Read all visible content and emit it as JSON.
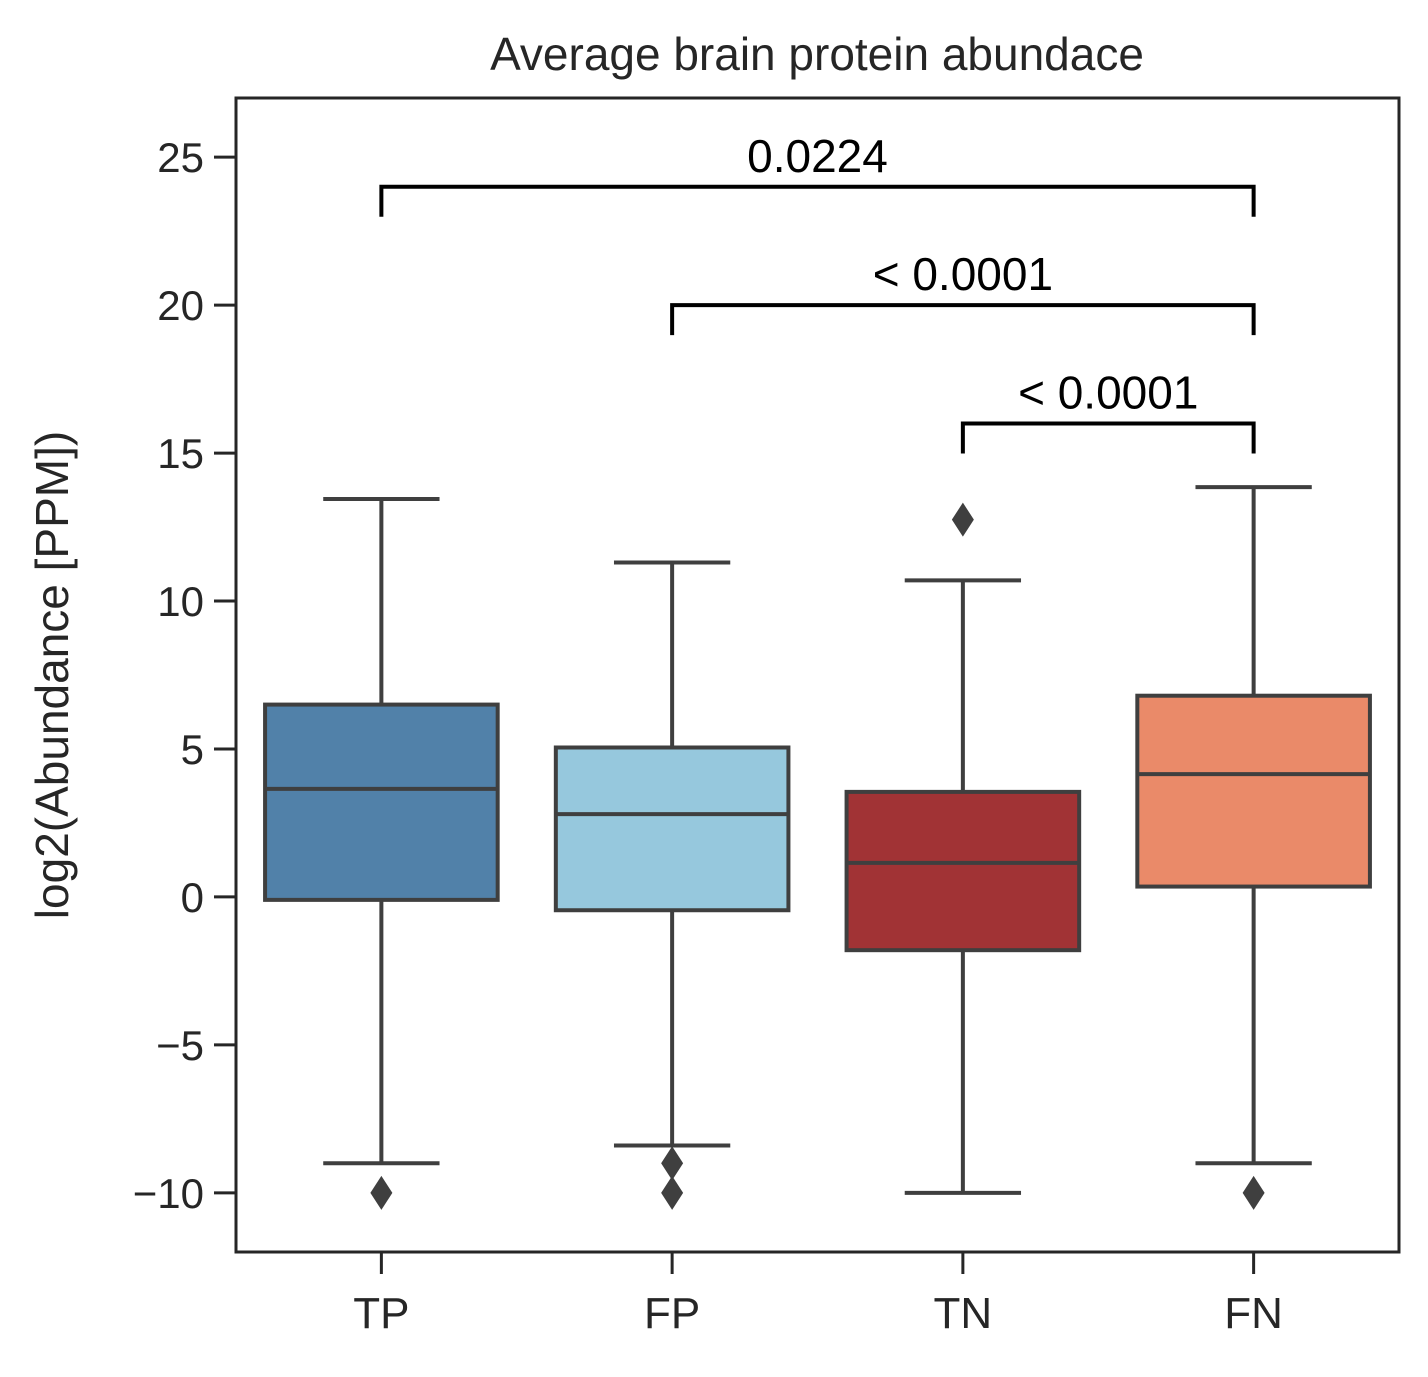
{
  "chart_data": {
    "type": "box",
    "title": "Average brain protein abundace",
    "xlabel": "",
    "ylabel": "log2(Abundance [PPM])",
    "ylim": [
      -12,
      27
    ],
    "yticks": [
      -10,
      -5,
      0,
      5,
      10,
      15,
      20,
      25
    ],
    "ytick_labels": [
      "−10",
      "−5",
      "0",
      "5",
      "10",
      "15",
      "20",
      "25"
    ],
    "categories": [
      "TP",
      "FP",
      "TN",
      "FN"
    ],
    "boxes": [
      {
        "category": "TP",
        "color": "#5181a9",
        "whisker_low": -9.0,
        "q1": -0.1,
        "median": 3.65,
        "q3": 6.5,
        "whisker_high": 13.45,
        "outliers": [
          -10.0
        ]
      },
      {
        "category": "FP",
        "color": "#96c8dd",
        "whisker_low": -8.4,
        "q1": -0.45,
        "median": 2.8,
        "q3": 5.05,
        "whisker_high": 11.3,
        "outliers": [
          -9.0,
          -10.0
        ]
      },
      {
        "category": "TN",
        "color": "#a13335",
        "whisker_low": -10.0,
        "q1": -1.8,
        "median": 1.15,
        "q3": 3.55,
        "whisker_high": 10.7,
        "outliers": [
          12.75
        ]
      },
      {
        "category": "FN",
        "color": "#ea8a69",
        "whisker_low": -9.0,
        "q1": 0.35,
        "median": 4.15,
        "q3": 6.8,
        "whisker_high": 13.85,
        "outliers": [
          -10.0
        ]
      }
    ],
    "annotations": [
      {
        "from": "TP",
        "to": "FN",
        "y": 24.0,
        "text": "0.0224"
      },
      {
        "from": "FP",
        "to": "FN",
        "y": 20.0,
        "text": "< 0.0001"
      },
      {
        "from": "TN",
        "to": "FN",
        "y": 16.0,
        "text": "< 0.0001"
      }
    ],
    "grid": false,
    "legend": "none"
  }
}
